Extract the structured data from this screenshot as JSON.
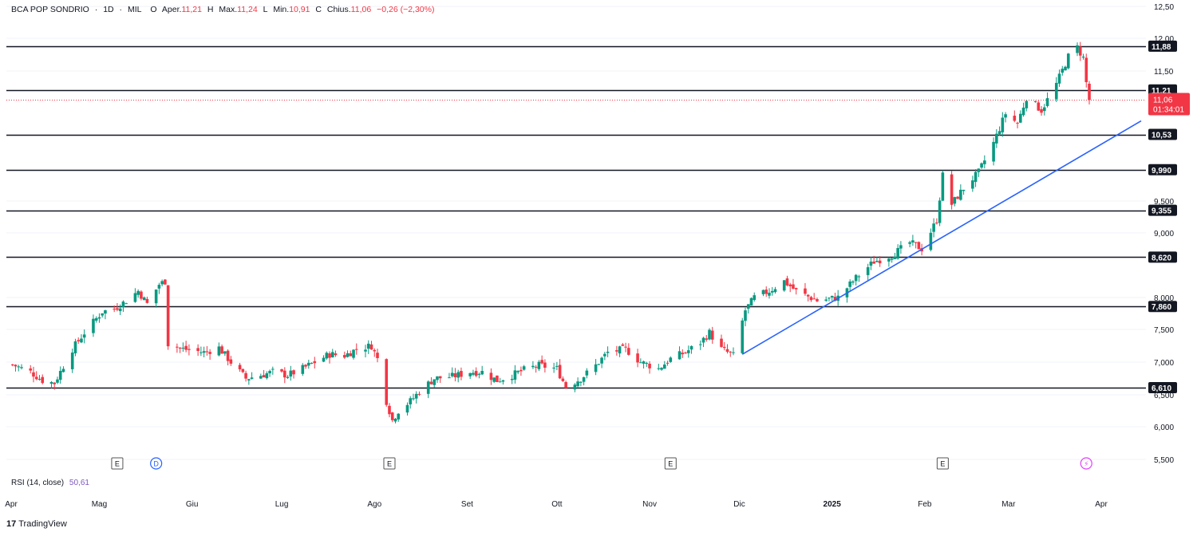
{
  "header": {
    "symbol": "BCA POP SONDRIO",
    "interval": "1D",
    "exchange": "MIL",
    "open_label": "Aper.",
    "open": "11,21",
    "high_label": "Max.",
    "high": "11,24",
    "low_label": "Min.",
    "low": "10,91",
    "close_label": "Chius.",
    "close": "11,06",
    "change": "−0,26 (−2,30%)"
  },
  "rsi": {
    "label": "RSI (14, close)",
    "value": "50,61"
  },
  "brand": "TradingView",
  "colors": {
    "up": "#089981",
    "down": "#f23645",
    "trend": "#2962ff",
    "level": "#131722",
    "rsi": "#7e57c2"
  },
  "chart_data": {
    "type": "candlestick",
    "y_axis_ticks": [
      "12,50",
      "12,00",
      "11,50",
      "9,500",
      "9,000",
      "8,000",
      "7,500",
      "7,000",
      "6,500",
      "6,000",
      "5,500"
    ],
    "ylim": [
      5.3,
      12.6
    ],
    "x_axis_ticks": [
      "Apr",
      "Mag",
      "Giu",
      "Lug",
      "Ago",
      "Set",
      "Ott",
      "Nov",
      "Dic",
      "2025",
      "Feb",
      "Mar",
      "Apr"
    ],
    "horizontal_levels": [
      "11,88",
      "11,21",
      "10,53",
      "9,990",
      "9,355",
      "8,620",
      "7,860",
      "6,610"
    ],
    "last_price": {
      "value": "11,06",
      "countdown": "01:34:01"
    },
    "trend_line": {
      "start_date": "2024-12-02",
      "start_value": 7.12,
      "end_date": "2025-04-01",
      "end_value": 10.7
    },
    "events": [
      {
        "date": "2024-05-07",
        "label": "E"
      },
      {
        "date": "2024-05-20",
        "label": "D"
      },
      {
        "date": "2024-08-06",
        "label": "E"
      },
      {
        "date": "2024-11-08",
        "label": "E"
      },
      {
        "date": "2025-02-07",
        "label": "E"
      },
      {
        "date": "2025-03-27",
        "label": "⚡"
      }
    ],
    "ohlc_keypoints": [
      [
        "2024-04-02",
        6.96
      ],
      [
        "2024-04-08",
        6.85
      ],
      [
        "2024-04-12",
        6.72
      ],
      [
        "2024-04-16",
        6.68
      ],
      [
        "2024-04-22",
        7.2
      ],
      [
        "2024-04-26",
        7.45
      ],
      [
        "2024-05-02",
        7.78
      ],
      [
        "2024-05-06",
        7.82
      ],
      [
        "2024-05-10",
        7.95
      ],
      [
        "2024-05-14",
        8.1
      ],
      [
        "2024-05-17",
        7.9
      ],
      [
        "2024-05-21",
        8.2
      ],
      [
        "2024-05-23",
        8.25
      ],
      [
        "2024-05-24",
        7.28
      ],
      [
        "2024-05-29",
        7.2
      ],
      [
        "2024-06-05",
        7.15
      ],
      [
        "2024-06-10",
        7.22
      ],
      [
        "2024-06-14",
        7.0
      ],
      [
        "2024-06-19",
        6.75
      ],
      [
        "2024-06-24",
        6.8
      ],
      [
        "2024-06-28",
        6.85
      ],
      [
        "2024-07-03",
        6.8
      ],
      [
        "2024-07-08",
        6.9
      ],
      [
        "2024-07-12",
        7.0
      ],
      [
        "2024-07-17",
        7.12
      ],
      [
        "2024-07-22",
        7.1
      ],
      [
        "2024-07-26",
        7.2
      ],
      [
        "2024-07-31",
        7.25
      ],
      [
        "2024-08-02",
        7.05
      ],
      [
        "2024-08-05",
        6.4
      ],
      [
        "2024-08-07",
        6.1
      ],
      [
        "2024-08-09",
        6.25
      ],
      [
        "2024-08-13",
        6.4
      ],
      [
        "2024-08-16",
        6.55
      ],
      [
        "2024-08-21",
        6.75
      ],
      [
        "2024-08-27",
        6.78
      ],
      [
        "2024-09-02",
        6.85
      ],
      [
        "2024-09-06",
        6.85
      ],
      [
        "2024-09-11",
        6.72
      ],
      [
        "2024-09-16",
        6.8
      ],
      [
        "2024-09-20",
        6.88
      ],
      [
        "2024-09-25",
        6.95
      ],
      [
        "2024-10-01",
        6.9
      ],
      [
        "2024-10-04",
        6.62
      ],
      [
        "2024-10-09",
        6.75
      ],
      [
        "2024-10-14",
        6.95
      ],
      [
        "2024-10-18",
        7.15
      ],
      [
        "2024-10-24",
        7.2
      ],
      [
        "2024-10-29",
        7.0
      ],
      [
        "2024-11-04",
        6.9
      ],
      [
        "2024-11-08",
        7.05
      ],
      [
        "2024-11-13",
        7.15
      ],
      [
        "2024-11-18",
        7.3
      ],
      [
        "2024-11-21",
        7.45
      ],
      [
        "2024-11-25",
        7.2
      ],
      [
        "2024-11-29",
        7.1
      ],
      [
        "2024-12-03",
        7.8
      ],
      [
        "2024-12-06",
        8.0
      ],
      [
        "2024-12-11",
        8.1
      ],
      [
        "2024-12-16",
        8.25
      ],
      [
        "2024-12-20",
        8.1
      ],
      [
        "2024-12-27",
        7.95
      ],
      [
        "2025-01-03",
        8.0
      ],
      [
        "2025-01-09",
        8.3
      ],
      [
        "2025-01-15",
        8.55
      ],
      [
        "2025-01-21",
        8.65
      ],
      [
        "2025-01-27",
        8.85
      ],
      [
        "2025-01-31",
        8.75
      ],
      [
        "2025-02-05",
        9.2
      ],
      [
        "2025-02-07",
        9.9
      ],
      [
        "2025-02-10",
        9.45
      ],
      [
        "2025-02-14",
        9.7
      ],
      [
        "2025-02-19",
        9.95
      ],
      [
        "2025-02-24",
        10.4
      ],
      [
        "2025-02-28",
        10.85
      ],
      [
        "2025-03-04",
        10.7
      ],
      [
        "2025-03-07",
        11.1
      ],
      [
        "2025-03-12",
        10.9
      ],
      [
        "2025-03-17",
        11.3
      ],
      [
        "2025-03-21",
        11.72
      ],
      [
        "2025-03-24",
        11.86
      ],
      [
        "2025-03-26",
        11.7
      ],
      [
        "2025-03-27",
        11.32
      ],
      [
        "2025-03-28",
        11.06
      ]
    ]
  }
}
